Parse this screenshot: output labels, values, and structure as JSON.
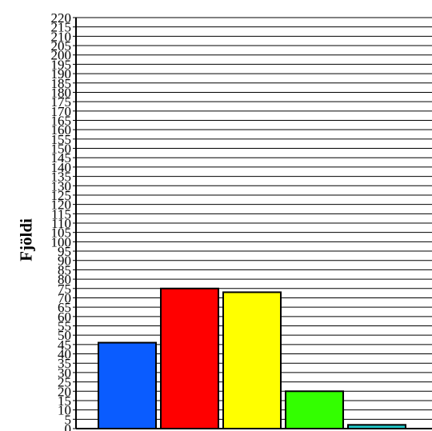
{
  "chart_data": {
    "type": "bar",
    "title": "",
    "xlabel": "",
    "ylabel": "Fjöldi",
    "ylim": [
      0,
      220
    ],
    "ytick_step": 5,
    "grid": true,
    "categories": [
      "",
      "",
      "",
      "",
      ""
    ],
    "values": [
      46,
      75,
      73,
      20,
      2
    ],
    "colors": [
      "#0a5cff",
      "#ff0000",
      "#ffff00",
      "#33ff00",
      "#22cccc"
    ]
  }
}
